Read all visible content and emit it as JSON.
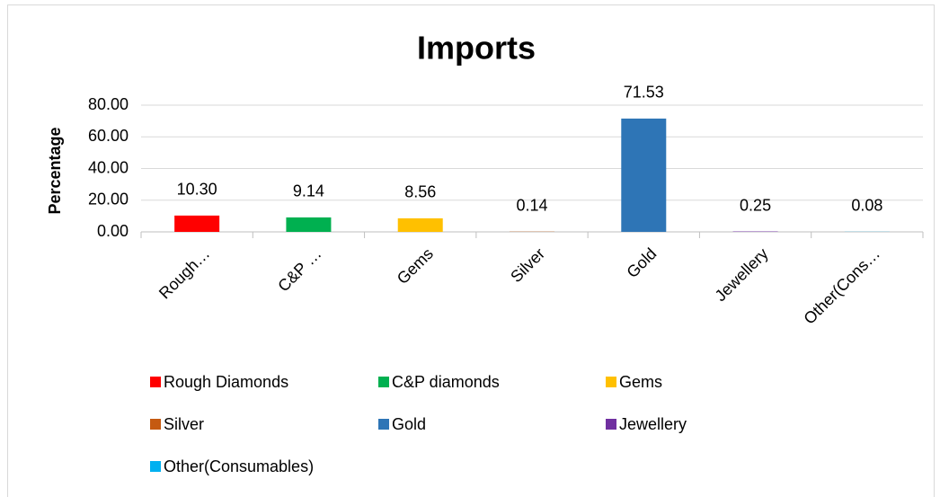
{
  "chart_data": {
    "type": "bar",
    "title": "Imports",
    "y_label": "Percentage",
    "categories": [
      "Rough…",
      "C&P …",
      "Gems",
      "Silver",
      "Gold",
      "Jewellery",
      "Other(Cons…"
    ],
    "legend": [
      "Rough Diamonds",
      "C&P diamonds",
      "Gems",
      "Silver",
      "Gold",
      "Jewellery",
      "Other(Consumables)"
    ],
    "colors": [
      "#ff0000",
      "#00b050",
      "#ffc000",
      "#c55a11",
      "#2e75b6",
      "#7030a0",
      "#00b0f0"
    ],
    "values": [
      10.3,
      9.14,
      8.56,
      0.14,
      71.53,
      0.25,
      0.08
    ],
    "value_labels": [
      "10.30",
      "9.14",
      "8.56",
      "0.14",
      "71.53",
      "0.25",
      "0.08"
    ],
    "ylim": [
      0,
      80
    ],
    "yticks": [
      {
        "value": 0,
        "label": "0.00"
      },
      {
        "value": 20,
        "label": "20.00"
      },
      {
        "value": 40,
        "label": "40.00"
      },
      {
        "value": 60,
        "label": "60.00"
      },
      {
        "value": 80,
        "label": "80.00"
      }
    ],
    "grid": true
  }
}
